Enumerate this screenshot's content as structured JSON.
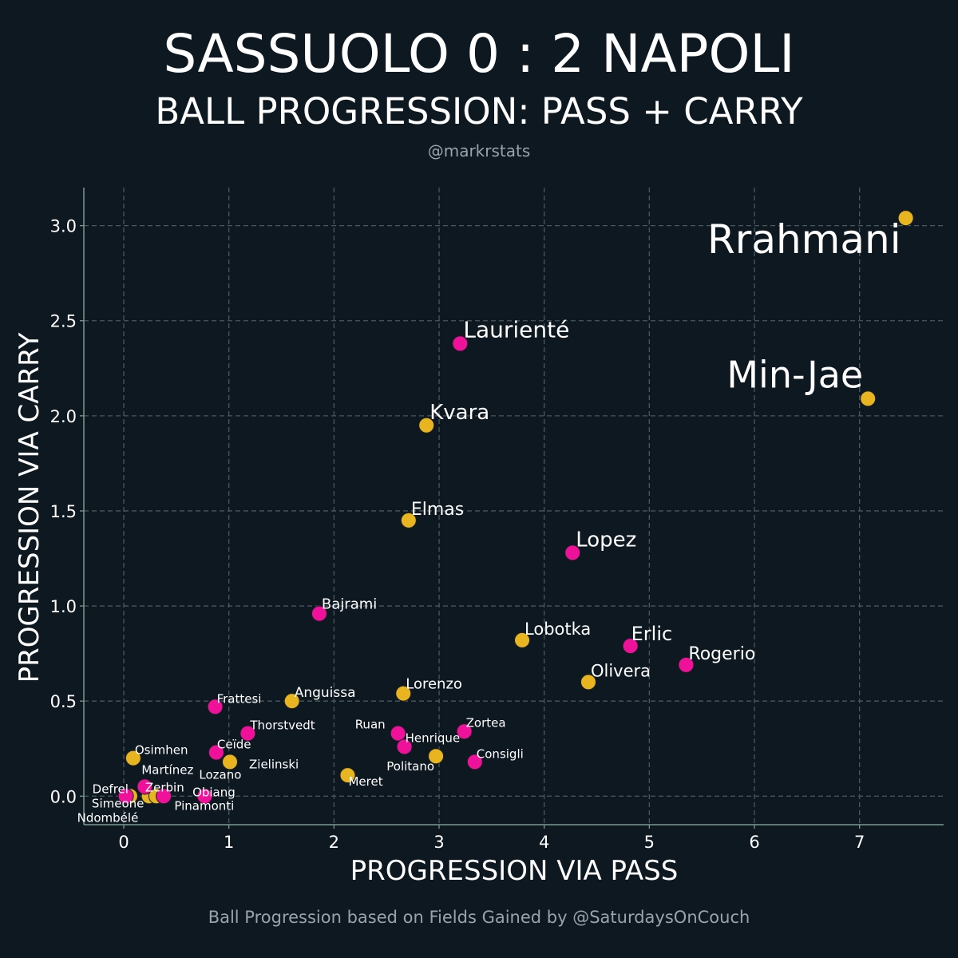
{
  "header": {
    "title": "SASSUOLO 0 : 2 NAPOLI",
    "subtitle": "BALL PROGRESSION: PASS + CARRY",
    "handle": "@markrstats"
  },
  "footer": {
    "credit": "Ball Progression based on Fields Gained by @SaturdaysOnCouch"
  },
  "colors": {
    "background": "#0e1820",
    "napoli": "#e8b521",
    "sassuolo": "#f0119a",
    "grid": "#4a5660",
    "axis": "#7a9a90"
  },
  "chart_data": {
    "type": "scatter",
    "xlabel": "PROGRESSION VIA PASS",
    "ylabel": "PROGRESSION VIA CARRY",
    "xlim": [
      -0.38,
      7.8
    ],
    "ylim": [
      -0.15,
      3.2
    ],
    "xticks": [
      "0",
      "1",
      "2",
      "3",
      "4",
      "5",
      "6",
      "7"
    ],
    "yticks": [
      "0.0",
      "0.5",
      "1.0",
      "1.5",
      "2.0",
      "2.5",
      "3.0"
    ],
    "grid": true,
    "series": [
      {
        "team": "Napoli",
        "color": "#e8b521",
        "points": [
          {
            "name": "Rrahmani",
            "x": 7.44,
            "y": 3.04
          },
          {
            "name": "Min-Jae",
            "x": 7.08,
            "y": 2.09
          },
          {
            "name": "Kvara",
            "x": 2.88,
            "y": 1.95
          },
          {
            "name": "Elmas",
            "x": 2.71,
            "y": 1.45
          },
          {
            "name": "Lobotka",
            "x": 3.79,
            "y": 0.82
          },
          {
            "name": "Olivera",
            "x": 4.42,
            "y": 0.6
          },
          {
            "name": "Lorenzo",
            "x": 2.66,
            "y": 0.54
          },
          {
            "name": "Anguissa",
            "x": 1.6,
            "y": 0.5
          },
          {
            "name": "Politano",
            "x": 2.97,
            "y": 0.21
          },
          {
            "name": "Zielinski",
            "x": 1.01,
            "y": 0.18
          },
          {
            "name": "Meret",
            "x": 2.13,
            "y": 0.11
          },
          {
            "name": "Osimhen",
            "x": 0.09,
            "y": 0.2
          },
          {
            "name": "Simeone",
            "x": 0.06,
            "y": 0.0
          },
          {
            "name": "Ndombélé",
            "x": 0.24,
            "y": 0.0
          },
          {
            "name": "Zerbin",
            "x": 0.31,
            "y": 0.0
          }
        ]
      },
      {
        "team": "Sassuolo",
        "color": "#f0119a",
        "points": [
          {
            "name": "Laurienté",
            "x": 3.2,
            "y": 2.38
          },
          {
            "name": "Lopez",
            "x": 4.27,
            "y": 1.28
          },
          {
            "name": "Bajrami",
            "x": 1.86,
            "y": 0.96
          },
          {
            "name": "Erlic",
            "x": 4.82,
            "y": 0.79
          },
          {
            "name": "Rogerio",
            "x": 5.35,
            "y": 0.69
          },
          {
            "name": "Frattesi",
            "x": 0.87,
            "y": 0.47
          },
          {
            "name": "Thorstvedt",
            "x": 1.18,
            "y": 0.33
          },
          {
            "name": "Ruan",
            "x": 2.61,
            "y": 0.33
          },
          {
            "name": "Zortea",
            "x": 3.24,
            "y": 0.34
          },
          {
            "name": "Henrique",
            "x": 2.67,
            "y": 0.26
          },
          {
            "name": "Ceïde",
            "x": 0.88,
            "y": 0.23
          },
          {
            "name": "Consigli",
            "x": 3.34,
            "y": 0.18
          },
          {
            "name": "Lozano",
            "x": 0.2,
            "y": 0.05
          },
          {
            "name": "Martínez",
            "x": 0.2,
            "y": 0.05
          },
          {
            "name": "Defrel",
            "x": 0.02,
            "y": 0.0
          },
          {
            "name": "Obiang",
            "x": 0.38,
            "y": 0.0
          },
          {
            "name": "Pinamonti",
            "x": 0.77,
            "y": 0.0
          }
        ]
      }
    ]
  }
}
